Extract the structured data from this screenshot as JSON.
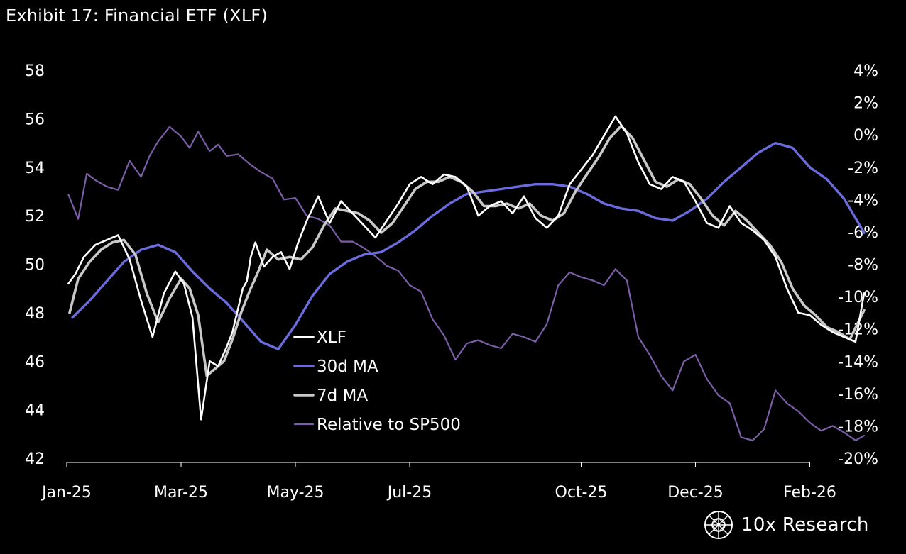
{
  "title": "Exhibit 17: Financial ETF (XLF)",
  "brand": {
    "name": "10x Research",
    "logo_icon": "globe-grid-icon"
  },
  "colors": {
    "background": "#000000",
    "xlf": "#ffffff",
    "ma30": "#6b6bde",
    "ma7": "#c8c8c8",
    "relative": "#7b5ea7",
    "axis": "#ffffff"
  },
  "chart_data": {
    "type": "line",
    "title": "Exhibit 17: Financial ETF (XLF)",
    "x_range": [
      "2025-01-02",
      "2026-02-27"
    ],
    "x_tick_labels": [
      "Jan-25",
      "Mar-25",
      "May-25",
      "Jul-25",
      "Oct-25",
      "Dec-25",
      "Feb-26"
    ],
    "x_tick_months": [
      0,
      2,
      4,
      6,
      9,
      11,
      13
    ],
    "y_left": {
      "label": "",
      "range": [
        42,
        58
      ],
      "ticks": [
        42,
        44,
        46,
        48,
        50,
        52,
        54,
        56,
        58
      ],
      "tick_labels": [
        "42",
        "44",
        "46",
        "48",
        "50",
        "52",
        "54",
        "56",
        "58"
      ]
    },
    "y_right": {
      "label": "",
      "range": [
        -20,
        4
      ],
      "ticks": [
        -20,
        -18,
        -16,
        -14,
        -12,
        -10,
        -8,
        -6,
        -4,
        -2,
        0,
        2,
        4
      ],
      "tick_labels": [
        "-20%",
        "-18%",
        "-16%",
        "-14%",
        "-12%",
        "-10%",
        "-8%",
        "-6%",
        "-4%",
        "-2%",
        "0%",
        "2%",
        "4%"
      ]
    },
    "legend": {
      "position": "center",
      "entries": [
        "XLF",
        "30d MA",
        "7d MA",
        "Relative to SP500"
      ]
    },
    "series": [
      {
        "name": "XLF",
        "axis": "left",
        "x_months": [
          0.03,
          0.15,
          0.3,
          0.5,
          0.7,
          0.9,
          1.1,
          1.3,
          1.5,
          1.7,
          1.9,
          2.05,
          2.2,
          2.35,
          2.5,
          2.65,
          2.8,
          2.9,
          3.0,
          3.08,
          3.15,
          3.22,
          3.3,
          3.45,
          3.6,
          3.75,
          3.9,
          4.05,
          4.2,
          4.4,
          4.6,
          4.8,
          5.0,
          5.2,
          5.4,
          5.6,
          5.8,
          6.0,
          6.2,
          6.4,
          6.6,
          6.8,
          7.0,
          7.2,
          7.4,
          7.6,
          7.8,
          8.0,
          8.2,
          8.4,
          8.6,
          8.8,
          9.0,
          9.2,
          9.4,
          9.6,
          9.8,
          10.0,
          10.2,
          10.4,
          10.6,
          10.8,
          11.0,
          11.2,
          11.4,
          11.6,
          11.8,
          12.0,
          12.2,
          12.4,
          12.6,
          12.8,
          13.0,
          13.2,
          13.4,
          13.6,
          13.8,
          13.95
        ],
        "values": [
          49.2,
          49.6,
          50.3,
          50.8,
          51.0,
          51.2,
          50.2,
          48.5,
          47.0,
          48.8,
          49.7,
          49.2,
          47.8,
          43.6,
          46.0,
          45.8,
          46.6,
          47.2,
          48.2,
          49.0,
          49.3,
          50.3,
          50.9,
          49.9,
          50.3,
          50.5,
          49.8,
          50.9,
          51.8,
          52.8,
          51.7,
          52.6,
          52.1,
          51.6,
          51.1,
          51.8,
          52.5,
          53.3,
          53.6,
          53.3,
          53.7,
          53.6,
          53.2,
          52.0,
          52.4,
          52.6,
          52.1,
          52.8,
          51.9,
          51.5,
          52.0,
          53.3,
          53.9,
          54.5,
          55.3,
          56.1,
          55.4,
          54.2,
          53.3,
          53.1,
          53.6,
          53.4,
          52.6,
          51.7,
          51.5,
          52.4,
          51.7,
          51.4,
          51.0,
          50.3,
          49.0,
          48.0,
          47.9,
          47.5,
          47.2,
          47.0,
          46.8,
          48.8
        ],
        "values_note": "approximate"
      },
      {
        "name": "30d MA",
        "axis": "left",
        "x_months": [
          0.1,
          0.4,
          0.7,
          1.0,
          1.3,
          1.6,
          1.9,
          2.2,
          2.5,
          2.8,
          3.1,
          3.4,
          3.7,
          4.0,
          4.3,
          4.6,
          4.9,
          5.2,
          5.5,
          5.8,
          6.1,
          6.4,
          6.7,
          7.0,
          7.3,
          7.6,
          7.9,
          8.2,
          8.5,
          8.8,
          9.1,
          9.4,
          9.7,
          10.0,
          10.3,
          10.6,
          10.9,
          11.2,
          11.5,
          11.8,
          12.1,
          12.4,
          12.7,
          13.0,
          13.3,
          13.6,
          13.95
        ],
        "values": [
          47.8,
          48.5,
          49.3,
          50.1,
          50.6,
          50.8,
          50.5,
          49.7,
          49.0,
          48.4,
          47.6,
          46.8,
          46.5,
          47.5,
          48.7,
          49.6,
          50.1,
          50.4,
          50.5,
          50.9,
          51.4,
          52.0,
          52.5,
          52.9,
          53.0,
          53.1,
          53.2,
          53.3,
          53.3,
          53.2,
          52.9,
          52.5,
          52.3,
          52.2,
          51.9,
          51.8,
          52.2,
          52.7,
          53.4,
          54.0,
          54.6,
          55.0,
          54.8,
          54.0,
          53.5,
          52.7,
          51.3
        ],
        "values_note": "approximate"
      },
      {
        "name": "7d MA",
        "axis": "left",
        "x_months": [
          0.05,
          0.2,
          0.4,
          0.6,
          0.8,
          1.0,
          1.2,
          1.4,
          1.6,
          1.8,
          2.0,
          2.15,
          2.3,
          2.45,
          2.6,
          2.75,
          2.9,
          3.05,
          3.2,
          3.35,
          3.5,
          3.7,
          3.9,
          4.1,
          4.3,
          4.5,
          4.7,
          4.9,
          5.1,
          5.3,
          5.5,
          5.7,
          5.9,
          6.1,
          6.3,
          6.5,
          6.7,
          6.9,
          7.1,
          7.3,
          7.5,
          7.7,
          7.9,
          8.1,
          8.3,
          8.5,
          8.7,
          8.9,
          9.1,
          9.3,
          9.5,
          9.7,
          9.9,
          10.1,
          10.3,
          10.5,
          10.7,
          10.9,
          11.1,
          11.3,
          11.5,
          11.7,
          11.9,
          12.1,
          12.3,
          12.5,
          12.7,
          12.9,
          13.1,
          13.3,
          13.5,
          13.7,
          13.95
        ],
        "values": [
          48.0,
          49.4,
          50.1,
          50.6,
          50.9,
          51.0,
          50.4,
          48.8,
          47.6,
          48.6,
          49.4,
          49.0,
          47.9,
          45.4,
          45.7,
          46.0,
          46.9,
          48.0,
          48.9,
          49.7,
          50.6,
          50.2,
          50.3,
          50.2,
          50.7,
          51.6,
          52.3,
          52.2,
          52.1,
          51.8,
          51.3,
          51.7,
          52.4,
          53.1,
          53.4,
          53.4,
          53.6,
          53.4,
          53.0,
          52.4,
          52.4,
          52.5,
          52.3,
          52.5,
          52.0,
          51.8,
          52.1,
          53.0,
          53.7,
          54.4,
          55.2,
          55.7,
          55.2,
          54.3,
          53.4,
          53.2,
          53.5,
          53.3,
          52.7,
          52.0,
          51.6,
          52.2,
          51.8,
          51.3,
          50.8,
          50.1,
          49.0,
          48.3,
          47.9,
          47.4,
          47.2,
          46.9,
          48.1
        ],
        "values_note": "approximate"
      },
      {
        "name": "Relative to SP500",
        "axis": "right",
        "x_months": [
          0.03,
          0.2,
          0.35,
          0.5,
          0.7,
          0.9,
          1.1,
          1.3,
          1.45,
          1.6,
          1.8,
          2.0,
          2.15,
          2.3,
          2.5,
          2.65,
          2.8,
          3.0,
          3.2,
          3.4,
          3.6,
          3.8,
          4.0,
          4.2,
          4.4,
          4.6,
          4.8,
          5.0,
          5.2,
          5.4,
          5.6,
          5.8,
          6.0,
          6.2,
          6.4,
          6.6,
          6.8,
          7.0,
          7.2,
          7.4,
          7.6,
          7.8,
          8.0,
          8.2,
          8.4,
          8.6,
          8.8,
          9.0,
          9.2,
          9.4,
          9.6,
          9.8,
          10.0,
          10.2,
          10.4,
          10.6,
          10.8,
          11.0,
          11.2,
          11.4,
          11.6,
          11.8,
          12.0,
          12.2,
          12.4,
          12.6,
          12.8,
          13.0,
          13.2,
          13.4,
          13.6,
          13.8,
          13.95
        ],
        "values": [
          -3.7,
          -5.2,
          -2.4,
          -2.8,
          -3.2,
          -3.4,
          -1.6,
          -2.6,
          -1.3,
          -0.4,
          0.5,
          -0.1,
          -0.8,
          0.2,
          -1.0,
          -0.6,
          -1.3,
          -1.2,
          -1.8,
          -2.3,
          -2.7,
          -4.0,
          -3.9,
          -5.0,
          -5.2,
          -5.6,
          -6.6,
          -6.6,
          -7.0,
          -7.5,
          -8.1,
          -8.4,
          -9.3,
          -9.7,
          -11.4,
          -12.4,
          -13.9,
          -12.9,
          -12.7,
          -13.0,
          -13.2,
          -12.3,
          -12.5,
          -12.8,
          -11.7,
          -9.3,
          -8.5,
          -8.8,
          -9.0,
          -9.3,
          -8.3,
          -9.0,
          -12.5,
          -13.6,
          -14.9,
          -15.8,
          -14.0,
          -13.6,
          -15.1,
          -16.1,
          -16.6,
          -18.7,
          -18.9,
          -18.2,
          -15.8,
          -16.6,
          -17.1,
          -17.8,
          -18.3,
          -18.0,
          -18.4,
          -18.9,
          -18.6
        ],
        "values_note": "approximate"
      }
    ]
  }
}
